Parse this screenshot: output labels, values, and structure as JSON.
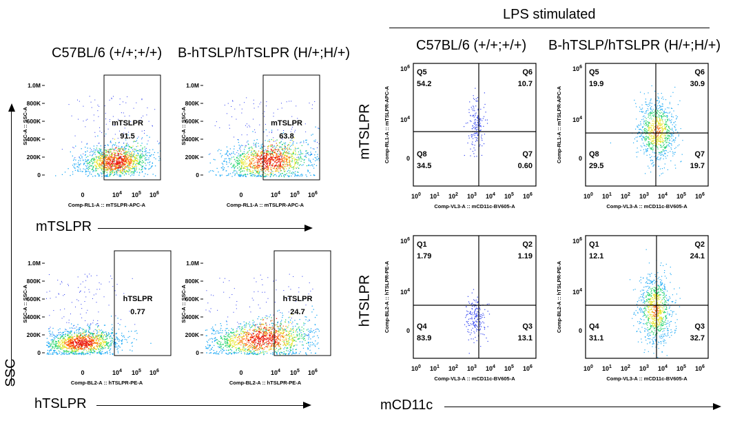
{
  "headers": {
    "lps": "LPS stimulated",
    "left_c57": "C57BL/6 (+/+;+/+)",
    "left_bh": "B-hTSLP/hTSLPR (H/+;H/+)",
    "right_c57": "C57BL/6 (+/+;+/+)",
    "right_bh": "B-hTSLP/hTSLPR (H/+;H/+)"
  },
  "side_labels": {
    "ssc": "SSC",
    "mtslpr_arrow": "mTSLPR",
    "htslpr_arrow": "hTSLPR",
    "mtslpr_row": "mTSLPR",
    "htslpr_row": "hTSLPR",
    "mcd11c_arrow": "mCD11c"
  },
  "axis_text": {
    "ssc_axis": "SSC-A :: SSC-A",
    "rl1_x": "Comp-RL1-A :: mTSLPR-APC-A",
    "bl2_x": "Comp-BL2-A :: hTSLPR-PE-A",
    "vl3_x": "Comp-VL3-A :: mCD11c-BV605-A",
    "rl1_y": "Comp-RL1-A :: mTSLPR-APC-A",
    "bl2_y": "Comp-BL2-A :: hTSLPR-PE-A"
  },
  "chart_data": [
    {
      "type": "scatter",
      "panel": "A",
      "gate_name": "mTSLPR",
      "gate_value": "91.5",
      "yticks": [
        "1.0M",
        "800K",
        "600K",
        "400K",
        "200K",
        "0"
      ],
      "xticks": [
        "0",
        "10^4",
        "10^5",
        "10^6"
      ],
      "xlabel_key": "rl1_x",
      "ylabel_key": "ssc_axis"
    },
    {
      "type": "scatter",
      "panel": "B",
      "gate_name": "mTSLPR",
      "gate_value": "63.8",
      "yticks": [
        "1.0M",
        "800K",
        "600K",
        "400K",
        "200K",
        "0"
      ],
      "xticks": [
        "0",
        "10^4",
        "10^5",
        "10^6"
      ],
      "xlabel_key": "rl1_x",
      "ylabel_key": "ssc_axis"
    },
    {
      "type": "scatter",
      "panel": "C",
      "gate_name": "hTSLPR",
      "gate_value": "0.77",
      "yticks": [
        "1.0M",
        "800K",
        "600K",
        "400K",
        "200K",
        "0"
      ],
      "xticks": [
        "0",
        "10^4",
        "10^5",
        "10^6"
      ],
      "xlabel_key": "bl2_x",
      "ylabel_key": "ssc_axis"
    },
    {
      "type": "scatter",
      "panel": "D",
      "gate_name": "hTSLPR",
      "gate_value": "24.7",
      "yticks": [
        "1.0M",
        "800K",
        "600K",
        "400K",
        "200K",
        "0"
      ],
      "xticks": [
        "0",
        "10^4",
        "10^5",
        "10^6"
      ],
      "xlabel_key": "bl2_x",
      "ylabel_key": "ssc_axis"
    },
    {
      "type": "scatter",
      "panel": "E",
      "quadrants": {
        "tl": [
          "Q5",
          "54.2"
        ],
        "tr": [
          "Q6",
          "10.7"
        ],
        "bl": [
          "Q8",
          "34.5"
        ],
        "br": [
          "Q7",
          "0.60"
        ]
      },
      "yticks": [
        "10^6",
        "10^4",
        "0"
      ],
      "xticks": [
        "10^0",
        "10^1",
        "10^2",
        "10^3",
        "10^4",
        "10^5",
        "10^6"
      ],
      "xlabel_key": "vl3_x",
      "ylabel_key": "rl1_y"
    },
    {
      "type": "scatter",
      "panel": "F",
      "quadrants": {
        "tl": [
          "Q5",
          "19.9"
        ],
        "tr": [
          "Q6",
          "30.9"
        ],
        "bl": [
          "Q8",
          "29.5"
        ],
        "br": [
          "Q7",
          "19.7"
        ]
      },
      "yticks": [
        "10^6",
        "10^4",
        "0"
      ],
      "xticks": [
        "10^0",
        "10^1",
        "10^2",
        "10^3",
        "10^4",
        "10^5",
        "10^6"
      ],
      "xlabel_key": "vl3_x",
      "ylabel_key": "rl1_y"
    },
    {
      "type": "scatter",
      "panel": "G",
      "quadrants": {
        "tl": [
          "Q1",
          "1.79"
        ],
        "tr": [
          "Q2",
          "1.19"
        ],
        "bl": [
          "Q4",
          "83.9"
        ],
        "br": [
          "Q3",
          "13.1"
        ]
      },
      "yticks": [
        "10^6",
        "10^4",
        "0"
      ],
      "xticks": [
        "10^0",
        "10^1",
        "10^2",
        "10^3",
        "10^4",
        "10^5",
        "10^6"
      ],
      "xlabel_key": "vl3_x",
      "ylabel_key": "bl2_y"
    },
    {
      "type": "scatter",
      "panel": "H",
      "quadrants": {
        "tl": [
          "Q1",
          "12.1"
        ],
        "tr": [
          "Q2",
          "24.1"
        ],
        "bl": [
          "Q4",
          "31.1"
        ],
        "br": [
          "Q3",
          "32.7"
        ]
      },
      "yticks": [
        "10^6",
        "10^4",
        "0"
      ],
      "xticks": [
        "10^0",
        "10^1",
        "10^2",
        "10^3",
        "10^4",
        "10^5",
        "10^6"
      ],
      "xlabel_key": "vl3_x",
      "ylabel_key": "bl2_y"
    }
  ]
}
